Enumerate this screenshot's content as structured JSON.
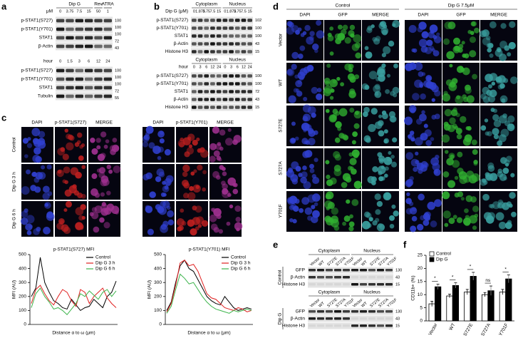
{
  "panel_labels": [
    "a",
    "b",
    "c",
    "d",
    "e",
    "f"
  ],
  "a": {
    "top": {
      "groups": [
        "Dip G",
        "Rev",
        "ATRA"
      ],
      "unit": "μM",
      "lanes": [
        0,
        3.75,
        7.5,
        15,
        50,
        1
      ],
      "rows": [
        "p-STAT1(S727)",
        "p-STAT1(Y701)",
        "STAT1",
        "β-Actin"
      ],
      "mw": [
        100,
        100,
        100,
        72,
        43
      ]
    },
    "bottom": {
      "unit": "hour",
      "lanes": [
        0,
        1.5,
        3,
        6,
        12,
        24
      ],
      "rows": [
        "p-STAT1(S727)",
        "p-STAT1(Y701)",
        "STAT1",
        "Tubulin"
      ],
      "mw": [
        100,
        100,
        100,
        72,
        55
      ]
    }
  },
  "b": {
    "top": {
      "groups": [
        "Cytoplasm",
        "Nucleus"
      ],
      "unit": "Dip G (μM)",
      "lanes": [
        0,
        1.875,
        3.75,
        7.5,
        15,
        0,
        1.875,
        3.75,
        7.5,
        15
      ],
      "rows": [
        "p-STAT1(S727)",
        "p-STAT1(Y701)",
        "STAT1",
        "β-Actin",
        "Histone H3"
      ],
      "mw": [
        102,
        100,
        100,
        43,
        15
      ]
    },
    "bottom": {
      "groups": [
        "Cytoplasm",
        "Nucleus"
      ],
      "unit": "hour",
      "lanes": [
        0,
        3,
        6,
        12,
        24,
        0,
        3,
        6,
        12,
        24
      ],
      "rows": [
        "p-STAT1(S727)",
        "p-STAT1(Y701)",
        "STAT1",
        "β-Actin",
        "Histone H3"
      ],
      "mw": [
        100,
        100,
        72,
        43,
        15
      ]
    }
  },
  "c": {
    "columns": [
      "DAPI",
      "p-STAT1(S727)",
      "MERGE",
      "DAPI",
      "p-STAT1(Y701)",
      "MERGE"
    ],
    "rows": [
      "Control",
      "Dip G 3 h",
      "Dip G 6 h"
    ]
  },
  "d": {
    "groups": [
      "Control",
      "Dip G 7.5μM"
    ],
    "columns": [
      "DAPI",
      "GFP",
      "MERGE",
      "DAPI",
      "GFP",
      "MERGE"
    ],
    "rows": [
      "Vector",
      "WT",
      "S727E",
      "S727A",
      "Y701F"
    ]
  },
  "e": {
    "groups": [
      "Cytoplasm",
      "Nucleus"
    ],
    "lanes": [
      "Vector",
      "WT",
      "S727E",
      "S727A",
      "Y701F",
      "Vector",
      "WT",
      "S727E",
      "S727A",
      "Y701F"
    ],
    "rows": [
      "GFP",
      "β-Actin",
      "Histone H3"
    ],
    "mw": [
      130,
      43,
      15
    ],
    "conditions": [
      "Control",
      "Dip G"
    ]
  },
  "chart_data": [
    {
      "type": "line",
      "title": "p-STAT1(S727) MFI",
      "xlabel": "Distance α to ω (μm)",
      "ylabel": "MFI (AU)",
      "ylim": [
        0,
        500
      ],
      "yticks": [
        0,
        100,
        200,
        300,
        400,
        500
      ],
      "series": [
        {
          "name": "Control",
          "color": "#000000",
          "values": [
            200,
            260,
            480,
            300,
            230,
            170,
            150,
            120,
            110,
            180,
            140,
            100,
            120,
            130,
            180,
            150,
            120,
            200,
            230,
            310
          ]
        },
        {
          "name": "Dip G 3 h",
          "color": "#e02020",
          "values": [
            150,
            250,
            280,
            220,
            170,
            140,
            200,
            250,
            230,
            170,
            130,
            250,
            230,
            150,
            200,
            230,
            260,
            190,
            150,
            120
          ]
        },
        {
          "name": "Dip G 6 h",
          "color": "#3cb44b",
          "values": [
            120,
            220,
            260,
            200,
            160,
            110,
            120,
            100,
            70,
            110,
            150,
            220,
            200,
            240,
            210,
            180,
            230,
            250,
            200,
            240
          ]
        }
      ]
    },
    {
      "type": "line",
      "title": "p-STAT1(Y701) MFI",
      "xlabel": "Distance α to ω (μm)",
      "ylabel": "MFI (AU)",
      "ylim": [
        0,
        500
      ],
      "yticks": [
        0,
        100,
        200,
        300,
        400,
        500
      ],
      "series": [
        {
          "name": "Control",
          "color": "#000000",
          "values": [
            100,
            160,
            300,
            420,
            460,
            400,
            380,
            320,
            260,
            200,
            170,
            150,
            140,
            200,
            160,
            120,
            100,
            110,
            120,
            110
          ]
        },
        {
          "name": "Dip G 3 h",
          "color": "#e02020",
          "values": [
            90,
            150,
            280,
            440,
            460,
            420,
            430,
            380,
            300,
            220,
            190,
            180,
            150,
            120,
            110,
            100,
            120,
            110,
            90,
            100
          ]
        },
        {
          "name": "Dip G 6 h",
          "color": "#3cb44b",
          "values": [
            80,
            130,
            250,
            360,
            330,
            290,
            300,
            250,
            200,
            160,
            130,
            110,
            100,
            90,
            80,
            100,
            90,
            100,
            110,
            100
          ]
        }
      ]
    },
    {
      "type": "bar",
      "ylabel": "CD11b+ (%)",
      "ylim": [
        0,
        25
      ],
      "yticks": [
        0,
        5,
        10,
        15,
        20,
        25
      ],
      "categories": [
        "Vector",
        "WT",
        "S727E",
        "S727A",
        "Y701F"
      ],
      "series": [
        {
          "name": "Control",
          "color": "#ffffff",
          "values": [
            6.5,
            9.5,
            11,
            10,
            11
          ],
          "errors": [
            1,
            0.7,
            1,
            0.8,
            1
          ]
        },
        {
          "name": "Dip G",
          "color": "#000000",
          "values": [
            13,
            13.5,
            17,
            11.5,
            16
          ],
          "errors": [
            1,
            1,
            1.5,
            1.8,
            1.5
          ]
        }
      ],
      "significance": [
        "*",
        "*",
        "*",
        "ns",
        "*"
      ]
    }
  ]
}
